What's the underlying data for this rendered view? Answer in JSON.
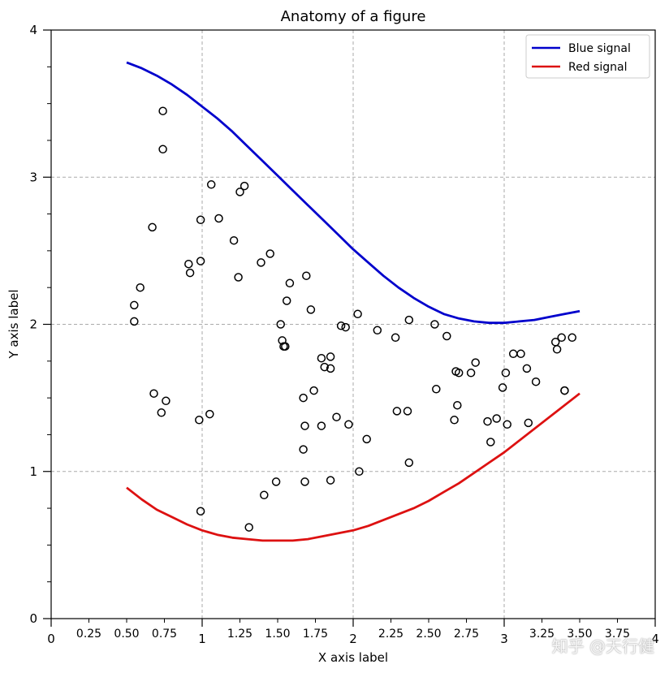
{
  "chart_data": {
    "type": "scatter",
    "title": "Anatomy of a figure",
    "xlabel": "X axis label",
    "ylabel": "Y axis label",
    "xlim": [
      0,
      4
    ],
    "ylim": [
      0,
      4
    ],
    "major_xticks": [
      0,
      1,
      2,
      3,
      4
    ],
    "major_xtick_labels": [
      "0",
      "1",
      "2",
      "3",
      "4"
    ],
    "minor_xticks": [
      0.25,
      0.5,
      0.75,
      1.25,
      1.5,
      1.75,
      2.25,
      2.5,
      2.75,
      3.25,
      3.5,
      3.75
    ],
    "minor_xtick_labels": [
      "0.25",
      "0.50",
      "0.75",
      "1.25",
      "1.50",
      "1.75",
      "2.25",
      "2.50",
      "2.75",
      "3.25",
      "3.50",
      "3.75"
    ],
    "major_yticks": [
      0,
      1,
      2,
      3,
      4
    ],
    "major_ytick_labels": [
      "0",
      "1",
      "2",
      "3",
      "4"
    ],
    "minor_yticks": [
      0.25,
      0.5,
      0.75,
      1.25,
      1.5,
      1.75,
      2.25,
      2.5,
      2.75,
      3.25,
      3.5,
      3.75
    ],
    "grid": true,
    "legend_position": "top-right",
    "series": [
      {
        "name": "Blue signal",
        "kind": "line",
        "color": "#0000cc",
        "x": [
          0.5,
          0.6,
          0.7,
          0.8,
          0.9,
          1.0,
          1.1,
          1.2,
          1.3,
          1.4,
          1.5,
          1.6,
          1.7,
          1.8,
          1.9,
          2.0,
          2.1,
          2.2,
          2.3,
          2.4,
          2.5,
          2.6,
          2.7,
          2.8,
          2.9,
          3.0,
          3.1,
          3.2,
          3.3,
          3.4,
          3.5
        ],
        "y": [
          3.78,
          3.74,
          3.69,
          3.63,
          3.56,
          3.48,
          3.4,
          3.31,
          3.21,
          3.11,
          3.01,
          2.91,
          2.81,
          2.71,
          2.61,
          2.51,
          2.42,
          2.33,
          2.25,
          2.18,
          2.12,
          2.07,
          2.04,
          2.02,
          2.01,
          2.01,
          2.02,
          2.03,
          2.05,
          2.07,
          2.09
        ]
      },
      {
        "name": "Red signal",
        "kind": "line",
        "color": "#dd1111",
        "x": [
          0.5,
          0.6,
          0.7,
          0.8,
          0.9,
          1.0,
          1.1,
          1.2,
          1.3,
          1.4,
          1.5,
          1.6,
          1.7,
          1.8,
          1.9,
          2.0,
          2.1,
          2.2,
          2.3,
          2.4,
          2.5,
          2.6,
          2.7,
          2.8,
          2.9,
          3.0,
          3.1,
          3.2,
          3.3,
          3.4,
          3.5
        ],
        "y": [
          0.89,
          0.81,
          0.74,
          0.69,
          0.64,
          0.6,
          0.57,
          0.55,
          0.54,
          0.53,
          0.53,
          0.53,
          0.54,
          0.56,
          0.58,
          0.6,
          0.63,
          0.67,
          0.71,
          0.75,
          0.8,
          0.86,
          0.92,
          0.99,
          1.06,
          1.13,
          1.21,
          1.29,
          1.37,
          1.45,
          1.53
        ]
      },
      {
        "name": "Scatter points",
        "kind": "scatter",
        "color": "#000000",
        "x": [
          0.74,
          0.74,
          0.67,
          0.59,
          0.55,
          0.55,
          0.91,
          0.92,
          0.99,
          0.99,
          1.06,
          1.11,
          1.21,
          1.24,
          1.25,
          1.28,
          1.39,
          1.45,
          1.52,
          1.53,
          1.54,
          1.55,
          1.56,
          1.58,
          1.69,
          1.72,
          1.79,
          1.81,
          1.85,
          1.85,
          1.92,
          1.95,
          2.03,
          2.16,
          2.28,
          2.29,
          2.37,
          2.54,
          2.62,
          2.7,
          2.68,
          2.78,
          2.81,
          2.89,
          2.95,
          2.99,
          3.01,
          3.06,
          3.11,
          3.15,
          3.21,
          3.34,
          3.35,
          3.38,
          3.4,
          3.4,
          3.45,
          0.68,
          0.76,
          0.73,
          0.98,
          1.05,
          1.67,
          1.68,
          1.74,
          1.79,
          1.89,
          1.97,
          2.09,
          2.36,
          2.55,
          2.67,
          2.69,
          2.91,
          3.02,
          3.16,
          1.67,
          1.49,
          1.41,
          1.31,
          1.68,
          1.85,
          2.04,
          2.37,
          0.99
        ],
        "y": [
          3.45,
          3.19,
          2.66,
          2.25,
          2.13,
          2.02,
          2.41,
          2.35,
          2.71,
          2.43,
          2.95,
          2.72,
          2.57,
          2.32,
          2.9,
          2.94,
          2.42,
          2.48,
          2.0,
          1.89,
          1.85,
          1.85,
          2.16,
          2.28,
          2.33,
          2.1,
          1.77,
          1.71,
          1.7,
          1.78,
          1.99,
          1.98,
          2.07,
          1.96,
          1.91,
          1.41,
          2.03,
          2.0,
          1.92,
          1.67,
          1.68,
          1.67,
          1.74,
          1.34,
          1.36,
          1.57,
          1.67,
          1.8,
          1.8,
          1.7,
          1.61,
          1.88,
          1.83,
          1.91,
          1.55,
          1.55,
          1.91,
          1.53,
          1.48,
          1.4,
          1.35,
          1.39,
          1.5,
          1.31,
          1.55,
          1.31,
          1.37,
          1.32,
          1.22,
          1.41,
          1.56,
          1.35,
          1.45,
          1.2,
          1.32,
          1.33,
          1.15,
          0.93,
          0.84,
          0.62,
          0.93,
          0.94,
          1.0,
          1.06,
          0.73
        ]
      }
    ]
  },
  "watermark": "知乎 @天行健"
}
